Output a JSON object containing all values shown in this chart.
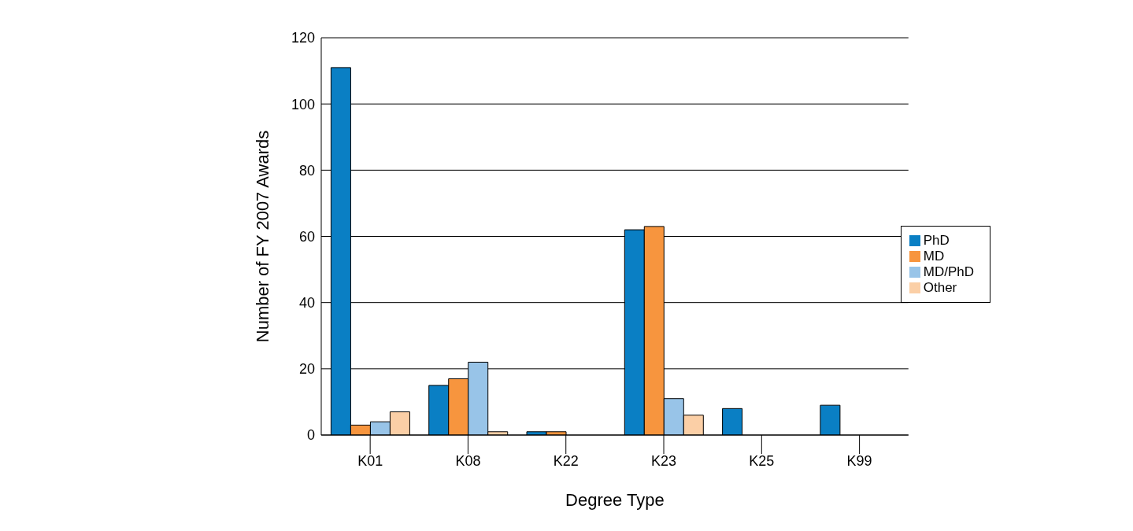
{
  "chart_data": {
    "type": "bar",
    "xlabel": "Degree Type",
    "ylabel": "Number of FY 2007 Awards",
    "categories": [
      "K01",
      "K08",
      "K22",
      "K23",
      "K25",
      "K99"
    ],
    "series": [
      {
        "name": "PhD",
        "color": "#0a7fc4",
        "values": [
          111,
          15,
          1,
          62,
          8,
          9
        ]
      },
      {
        "name": "MD",
        "color": "#f7953e",
        "values": [
          3,
          17,
          1,
          63,
          null,
          null
        ]
      },
      {
        "name": "MD/PhD",
        "color": "#98c4e8",
        "values": [
          4,
          22,
          null,
          11,
          null,
          null
        ]
      },
      {
        "name": "Other",
        "color": "#fbcfa6",
        "values": [
          7,
          1,
          null,
          6,
          null,
          null
        ]
      }
    ],
    "ylim": [
      0,
      120
    ],
    "yticks": [
      0,
      20,
      40,
      60,
      80,
      100,
      120
    ],
    "grid": "y",
    "legend": "right"
  }
}
